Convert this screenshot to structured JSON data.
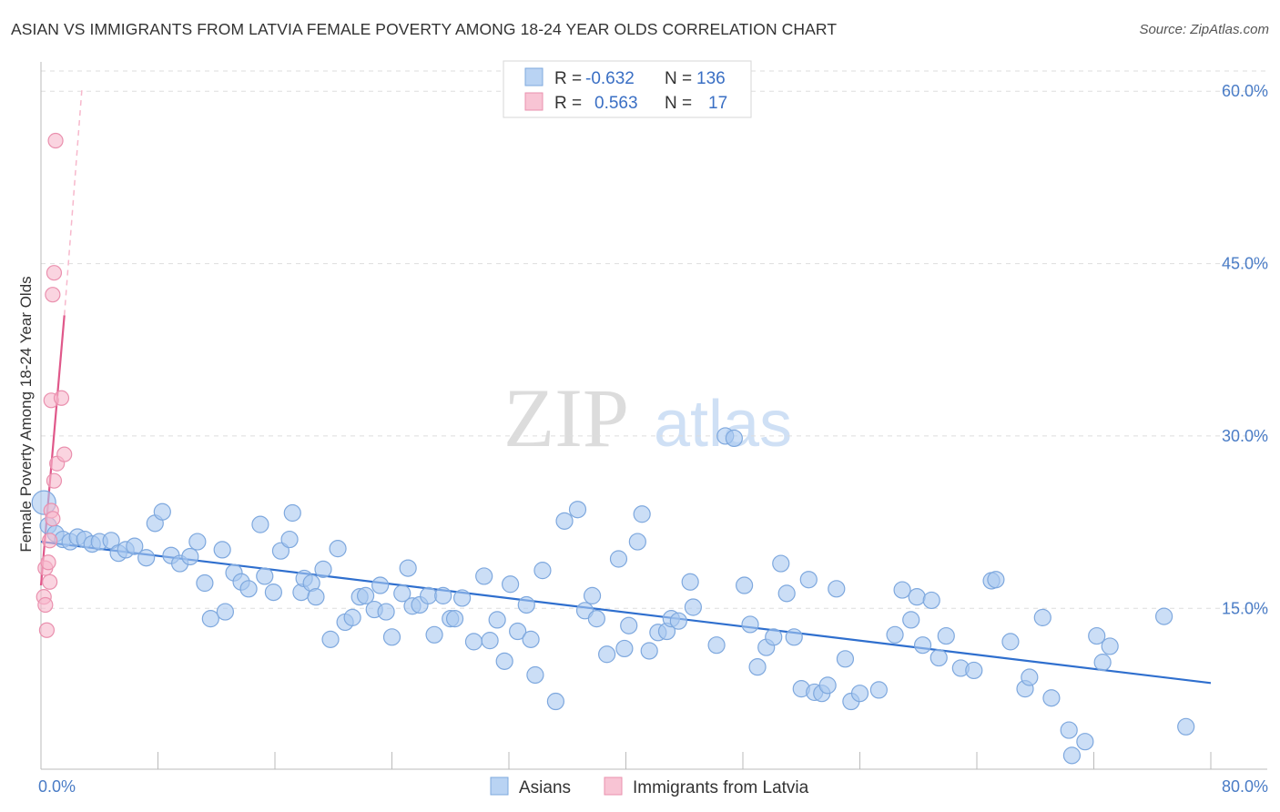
{
  "header": {
    "title": "ASIAN VS IMMIGRANTS FROM LATVIA FEMALE POVERTY AMONG 18-24 YEAR OLDS CORRELATION CHART",
    "source": "Source: ZipAtlas.com"
  },
  "watermark": {
    "zip": "ZIP",
    "atlas": "atlas"
  },
  "legend": {
    "r_label": "R =",
    "n_label": "N =",
    "rows": [
      {
        "r": "-0.632",
        "n": "136"
      },
      {
        "r": "0.563",
        "n": "17"
      }
    ]
  },
  "chart_data": {
    "type": "scatter",
    "xlabel": "",
    "ylabel": "Female Poverty Among 18-24 Year Olds",
    "x_tick_labels": [
      "0.0%",
      "80.0%"
    ],
    "y_tick_labels": [
      "15.0%",
      "30.0%",
      "45.0%",
      "60.0%"
    ],
    "xlim": [
      0,
      80
    ],
    "ylim": [
      1,
      62
    ],
    "y_ticks": [
      15,
      30,
      45,
      60
    ],
    "grid": true,
    "legend_placement": "top-center",
    "series": [
      {
        "name": "Asians",
        "color": "#a9c8f0",
        "edge": "#7ea8de",
        "line_color": "#2f6fce",
        "trend": {
          "x": [
            0,
            80
          ],
          "y": [
            20.8,
            8.5
          ]
        },
        "points": [
          [
            0.2,
            24.2
          ],
          [
            0.5,
            22.2
          ],
          [
            1.0,
            21.5
          ],
          [
            1.5,
            21.0
          ],
          [
            2.0,
            20.8
          ],
          [
            2.5,
            21.2
          ],
          [
            3.0,
            21.0
          ],
          [
            3.5,
            20.6
          ],
          [
            4.0,
            20.8
          ],
          [
            4.8,
            20.9
          ],
          [
            5.3,
            19.8
          ],
          [
            5.8,
            20.1
          ],
          [
            6.4,
            20.4
          ],
          [
            7.2,
            19.4
          ],
          [
            7.8,
            22.4
          ],
          [
            8.3,
            23.4
          ],
          [
            8.9,
            19.6
          ],
          [
            9.5,
            18.9
          ],
          [
            10.2,
            19.5
          ],
          [
            10.7,
            20.8
          ],
          [
            11.2,
            17.2
          ],
          [
            11.6,
            14.1
          ],
          [
            12.4,
            20.1
          ],
          [
            12.6,
            14.7
          ],
          [
            13.2,
            18.1
          ],
          [
            13.7,
            17.3
          ],
          [
            14.2,
            16.7
          ],
          [
            15.0,
            22.3
          ],
          [
            15.3,
            17.8
          ],
          [
            15.9,
            16.4
          ],
          [
            16.4,
            20.0
          ],
          [
            17.0,
            21.0
          ],
          [
            17.2,
            23.3
          ],
          [
            17.8,
            16.4
          ],
          [
            18.0,
            17.6
          ],
          [
            18.5,
            17.2
          ],
          [
            18.8,
            16.0
          ],
          [
            19.3,
            18.4
          ],
          [
            19.8,
            12.3
          ],
          [
            20.3,
            20.2
          ],
          [
            20.8,
            13.8
          ],
          [
            21.3,
            14.2
          ],
          [
            21.8,
            16.0
          ],
          [
            22.2,
            16.1
          ],
          [
            22.8,
            14.9
          ],
          [
            23.2,
            17.0
          ],
          [
            23.6,
            14.7
          ],
          [
            24.0,
            12.5
          ],
          [
            24.7,
            16.3
          ],
          [
            25.1,
            18.5
          ],
          [
            25.4,
            15.2
          ],
          [
            25.9,
            15.3
          ],
          [
            26.5,
            16.1
          ],
          [
            26.9,
            12.7
          ],
          [
            27.5,
            16.1
          ],
          [
            28.0,
            14.1
          ],
          [
            28.3,
            14.1
          ],
          [
            28.8,
            15.9
          ],
          [
            29.6,
            12.1
          ],
          [
            30.3,
            17.8
          ],
          [
            30.7,
            12.2
          ],
          [
            31.2,
            14.0
          ],
          [
            31.7,
            10.4
          ],
          [
            32.1,
            17.1
          ],
          [
            32.6,
            13.0
          ],
          [
            33.2,
            15.3
          ],
          [
            33.5,
            12.3
          ],
          [
            33.8,
            9.2
          ],
          [
            34.3,
            18.3
          ],
          [
            35.2,
            6.9
          ],
          [
            35.8,
            22.6
          ],
          [
            36.7,
            23.6
          ],
          [
            37.2,
            14.8
          ],
          [
            37.7,
            16.1
          ],
          [
            38.0,
            14.1
          ],
          [
            38.7,
            11.0
          ],
          [
            39.5,
            19.3
          ],
          [
            39.9,
            11.5
          ],
          [
            40.2,
            13.5
          ],
          [
            40.8,
            20.8
          ],
          [
            41.1,
            23.2
          ],
          [
            41.6,
            11.3
          ],
          [
            42.2,
            12.9
          ],
          [
            42.8,
            13.0
          ],
          [
            43.1,
            14.1
          ],
          [
            43.6,
            13.9
          ],
          [
            44.4,
            17.3
          ],
          [
            44.6,
            15.1
          ],
          [
            46.2,
            11.8
          ],
          [
            46.8,
            30.0
          ],
          [
            47.4,
            29.8
          ],
          [
            48.1,
            17.0
          ],
          [
            48.5,
            13.6
          ],
          [
            49.0,
            9.9
          ],
          [
            49.6,
            11.6
          ],
          [
            50.1,
            12.5
          ],
          [
            50.6,
            18.9
          ],
          [
            51.0,
            16.3
          ],
          [
            51.5,
            12.5
          ],
          [
            52.0,
            8.0
          ],
          [
            52.5,
            17.5
          ],
          [
            52.9,
            7.7
          ],
          [
            53.4,
            7.6
          ],
          [
            53.8,
            8.3
          ],
          [
            54.4,
            16.7
          ],
          [
            55.0,
            10.6
          ],
          [
            55.4,
            6.9
          ],
          [
            56.0,
            7.6
          ],
          [
            57.3,
            7.9
          ],
          [
            58.4,
            12.7
          ],
          [
            58.9,
            16.6
          ],
          [
            59.5,
            14.0
          ],
          [
            59.9,
            16.0
          ],
          [
            60.3,
            11.8
          ],
          [
            60.9,
            15.7
          ],
          [
            61.4,
            10.7
          ],
          [
            61.9,
            12.6
          ],
          [
            62.9,
            9.8
          ],
          [
            63.8,
            9.6
          ],
          [
            65.0,
            17.4
          ],
          [
            65.3,
            17.5
          ],
          [
            66.3,
            12.1
          ],
          [
            67.3,
            8.0
          ],
          [
            67.6,
            9.0
          ],
          [
            68.5,
            14.2
          ],
          [
            69.1,
            7.2
          ],
          [
            70.3,
            4.4
          ],
          [
            70.5,
            2.2
          ],
          [
            71.4,
            3.4
          ],
          [
            72.2,
            12.6
          ],
          [
            72.6,
            10.3
          ],
          [
            73.1,
            11.7
          ],
          [
            76.8,
            14.3
          ],
          [
            78.3,
            4.7
          ]
        ]
      },
      {
        "name": "Immigrants from Latvia",
        "color": "#f7b8cc",
        "edge": "#ea90ae",
        "line_color": "#e0588a",
        "trend": {
          "x": [
            0,
            1.6
          ],
          "y": [
            17.0,
            40.5
          ]
        },
        "trend_dashed": {
          "x": [
            1.6,
            2.8
          ],
          "y": [
            40.5,
            60.2
          ]
        },
        "points": [
          [
            0.2,
            16.0
          ],
          [
            0.3,
            15.3
          ],
          [
            0.3,
            18.5
          ],
          [
            0.4,
            13.1
          ],
          [
            0.5,
            19.0
          ],
          [
            0.6,
            17.3
          ],
          [
            0.6,
            20.9
          ],
          [
            0.7,
            23.5
          ],
          [
            0.7,
            33.1
          ],
          [
            0.8,
            42.3
          ],
          [
            0.8,
            22.8
          ],
          [
            0.9,
            26.1
          ],
          [
            0.9,
            44.2
          ],
          [
            1.0,
            55.7
          ],
          [
            1.1,
            27.6
          ],
          [
            1.4,
            33.3
          ],
          [
            1.6,
            28.4
          ]
        ]
      }
    ]
  }
}
